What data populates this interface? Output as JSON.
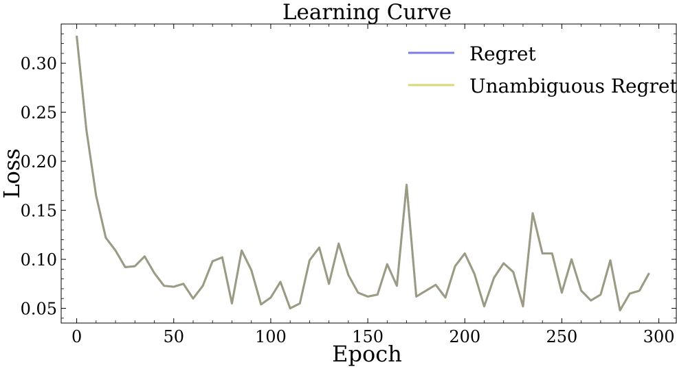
{
  "chart_data": {
    "type": "line",
    "title": "Learning Curve",
    "xlabel": "Epoch",
    "ylabel": "Loss",
    "xlim": [
      -8,
      309
    ],
    "ylim": [
      0.035,
      0.34
    ],
    "x_ticks": [
      0,
      50,
      100,
      150,
      200,
      250,
      300
    ],
    "y_ticks": [
      0.05,
      0.1,
      0.15,
      0.2,
      0.25,
      0.3
    ],
    "x_tick_labels": [
      "0",
      "50",
      "100",
      "150",
      "200",
      "250",
      "300"
    ],
    "y_tick_labels": [
      "0.05",
      "0.10",
      "0.15",
      "0.20",
      "0.25",
      "0.30"
    ],
    "grid": false,
    "legend_position": "top-right",
    "x": [
      0,
      5,
      10,
      15,
      20,
      25,
      30,
      35,
      40,
      45,
      50,
      55,
      60,
      65,
      70,
      75,
      80,
      85,
      90,
      95,
      100,
      105,
      110,
      115,
      120,
      125,
      130,
      135,
      140,
      145,
      150,
      155,
      160,
      165,
      170,
      175,
      180,
      185,
      190,
      195,
      200,
      205,
      210,
      215,
      220,
      225,
      230,
      235,
      240,
      245,
      250,
      255,
      260,
      265,
      270,
      275,
      280,
      285,
      290,
      295
    ],
    "series": [
      {
        "name": "Regret",
        "color": "#7b7bea",
        "values": [
          0.328,
          0.232,
          0.165,
          0.122,
          0.109,
          0.092,
          0.093,
          0.103,
          0.086,
          0.073,
          0.072,
          0.075,
          0.06,
          0.073,
          0.098,
          0.102,
          0.055,
          0.109,
          0.089,
          0.054,
          0.061,
          0.077,
          0.05,
          0.055,
          0.099,
          0.112,
          0.075,
          0.116,
          0.084,
          0.066,
          0.062,
          0.064,
          0.095,
          0.073,
          0.176,
          0.062,
          0.068,
          0.074,
          0.061,
          0.093,
          0.106,
          0.085,
          0.052,
          0.081,
          0.096,
          0.087,
          0.052,
          0.147,
          0.106,
          0.106,
          0.066,
          0.1,
          0.068,
          0.058,
          0.064,
          0.099,
          0.048,
          0.065,
          0.068,
          0.086
        ]
      },
      {
        "name": "Unambiguous Regret",
        "color": "#d9d877",
        "values": [
          0.328,
          0.232,
          0.165,
          0.122,
          0.109,
          0.092,
          0.093,
          0.103,
          0.086,
          0.073,
          0.072,
          0.075,
          0.06,
          0.073,
          0.098,
          0.102,
          0.055,
          0.109,
          0.089,
          0.054,
          0.061,
          0.077,
          0.05,
          0.055,
          0.099,
          0.112,
          0.075,
          0.116,
          0.084,
          0.066,
          0.062,
          0.064,
          0.095,
          0.073,
          0.176,
          0.062,
          0.068,
          0.074,
          0.061,
          0.093,
          0.106,
          0.085,
          0.052,
          0.081,
          0.096,
          0.087,
          0.052,
          0.147,
          0.106,
          0.106,
          0.066,
          0.1,
          0.068,
          0.058,
          0.064,
          0.099,
          0.048,
          0.065,
          0.068,
          0.086
        ]
      }
    ],
    "overlap_color": "#9b9b85"
  }
}
